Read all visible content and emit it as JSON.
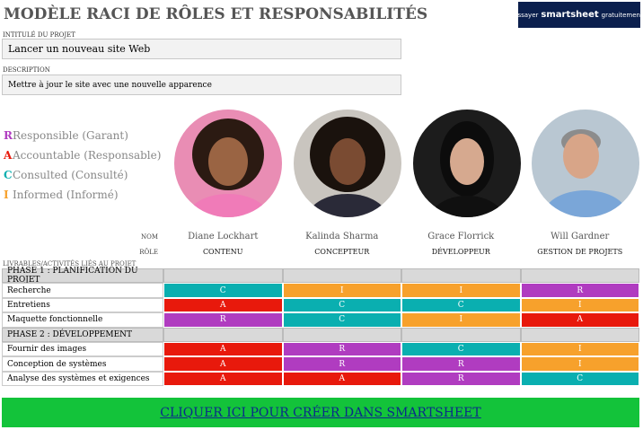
{
  "header": {
    "title": "MODÈLE RACI DE RÔLES ET RESPONSABILITÉS",
    "badge": {
      "try": "Essayer",
      "brand": "smartsheet",
      "free": "gratuitement."
    }
  },
  "project": {
    "name_label": "INTITULÉ DU PROJET",
    "name": "Lancer un nouveau site Web",
    "description_label": "DESCRIPTION",
    "description": "Mettre à jour le site avec une nouvelle apparence"
  },
  "legend": [
    {
      "letter": "R",
      "text": "Responsible (Garant)",
      "color": "#b03cc0"
    },
    {
      "letter": "A",
      "text": "Accountable (Responsable)",
      "color": "#e8190c"
    },
    {
      "letter": "C",
      "text": "Consulted (Consulté)",
      "color": "#0aafb0"
    },
    {
      "letter": "I",
      "text": "Informed (Informé)",
      "color": "#f7a12c"
    }
  ],
  "people": {
    "name_label": "NOM",
    "role_label": "RÔLE",
    "members": [
      {
        "name": "Diane Lockhart",
        "role": "CONTENU"
      },
      {
        "name": "Kalinda Sharma",
        "role": "CONCEPTEUR"
      },
      {
        "name": "Grace Florrick",
        "role": "DÉVELOPPEUR"
      },
      {
        "name": "Will Gardner",
        "role": "GESTION DE PROJETS"
      }
    ]
  },
  "table": {
    "header": "LIVRABLES/ACTIVITÉS LIÉS AU PROJET",
    "phases": [
      {
        "title": "PHASE 1 : PLANIFICATION DU PROJET",
        "rows": [
          {
            "label": "Recherche",
            "cells": [
              "C",
              "I",
              "I",
              "R"
            ]
          },
          {
            "label": "Entretiens",
            "cells": [
              "A",
              "C",
              "C",
              "I"
            ]
          },
          {
            "label": "Maquette fonctionnelle",
            "cells": [
              "R",
              "C",
              "I",
              "A"
            ]
          }
        ]
      },
      {
        "title": "PHASE 2 : DÉVELOPPEMENT",
        "rows": [
          {
            "label": "Fournir des images",
            "cells": [
              "A",
              "R",
              "C",
              "I"
            ]
          },
          {
            "label": "Conception de systèmes",
            "cells": [
              "A",
              "R",
              "R",
              "I"
            ]
          },
          {
            "label": "Analyse des systèmes et exigences",
            "cells": [
              "A",
              "A",
              "R",
              "C"
            ]
          }
        ]
      }
    ]
  },
  "cta": "CLIQUER ICI POUR CRÉER DANS SMARTSHEET"
}
